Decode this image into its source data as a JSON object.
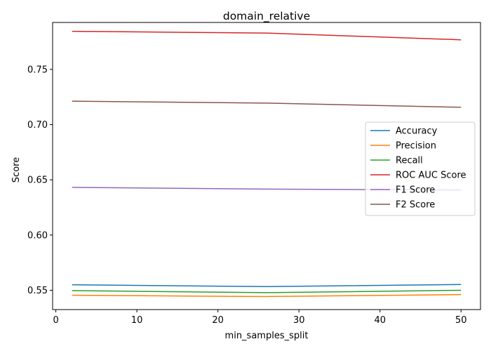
{
  "chart_data": {
    "type": "line",
    "title": "domain_relative",
    "xlabel": "min_samples_split",
    "ylabel": "Score",
    "x": [
      2,
      26,
      50
    ],
    "xlim": [
      -0.4,
      52.4
    ],
    "ylim": [
      0.5325,
      0.7925
    ],
    "xticks": [
      0,
      10,
      20,
      30,
      40,
      50
    ],
    "yticks": [
      0.55,
      0.6,
      0.65,
      0.7,
      0.75
    ],
    "ytick_labels": [
      "0.55",
      "0.60",
      "0.65",
      "0.70",
      "0.75"
    ],
    "grid": false,
    "legend_position": "center-right",
    "series": [
      {
        "name": "Accuracy",
        "color": "#1f77b4",
        "values": [
          0.555,
          0.5533,
          0.5552
        ]
      },
      {
        "name": "Precision",
        "color": "#ff7f0e",
        "values": [
          0.5455,
          0.5443,
          0.5461
        ]
      },
      {
        "name": "Recall",
        "color": "#2ca02c",
        "values": [
          0.5497,
          0.5478,
          0.55
        ]
      },
      {
        "name": "ROC AUC Score",
        "color": "#d62728",
        "values": [
          0.7845,
          0.7829,
          0.7768
        ]
      },
      {
        "name": "F1 Score",
        "color": "#9467bd",
        "values": [
          0.6432,
          0.6416,
          0.6408
        ]
      },
      {
        "name": "F2 Score",
        "color": "#8c564b",
        "values": [
          0.7212,
          0.7195,
          0.7157
        ]
      }
    ]
  }
}
